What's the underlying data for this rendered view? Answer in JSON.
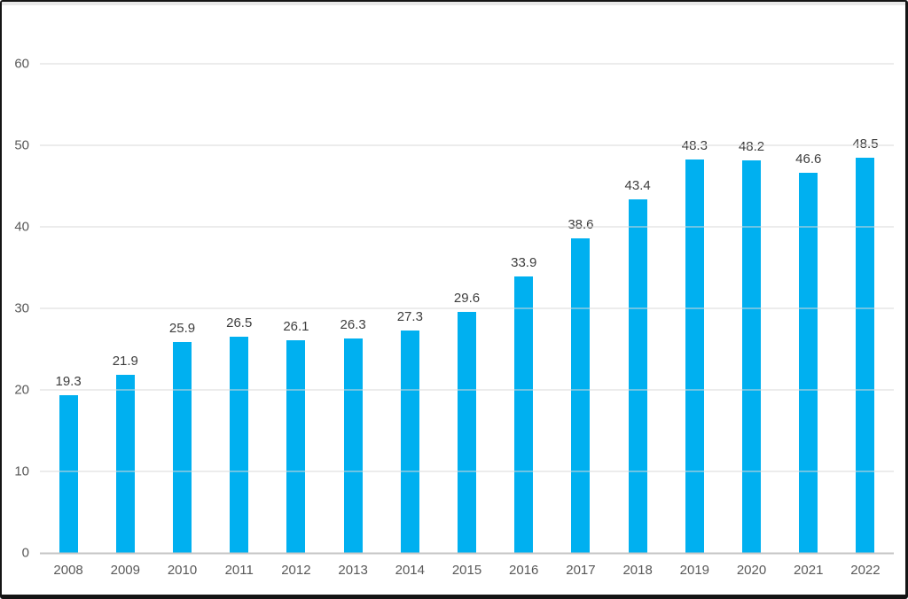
{
  "chart_data": {
    "type": "bar",
    "title": "",
    "xlabel": "",
    "ylabel": "",
    "categories": [
      "2008",
      "2009",
      "2010",
      "2011",
      "2012",
      "2013",
      "2014",
      "2015",
      "2016",
      "2017",
      "2018",
      "2019",
      "2020",
      "2021",
      "2022"
    ],
    "values": [
      19.3,
      21.9,
      25.9,
      26.5,
      26.1,
      26.3,
      27.3,
      29.6,
      33.9,
      38.6,
      43.4,
      48.3,
      48.2,
      46.6,
      48.5
    ],
    "data_labels": [
      "19.3",
      "21.9",
      "25.9",
      "26.5",
      "26.1",
      "26.3",
      "27.3",
      "29.6",
      "33.9",
      "38.6",
      "43.4",
      "48.3",
      "48.2",
      "46.6",
      "48.5"
    ],
    "y_ticks": [
      0,
      10,
      20,
      30,
      40,
      50,
      60
    ],
    "ylim": [
      0,
      60
    ],
    "grid": true,
    "legend": false,
    "colors": {
      "bar": "#00b0f0",
      "gridline": "#d9d9d9",
      "axis_line": "#c6c6c6",
      "tick_text": "#595959",
      "value_text": "#3d3d3d",
      "frame_border": "#141414",
      "background": "#ffffff"
    }
  }
}
